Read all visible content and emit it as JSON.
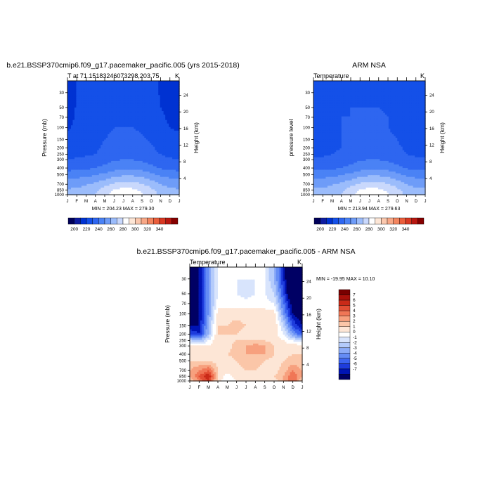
{
  "colors": {
    "temperature_scale": [
      "#00005a",
      "#0e1ca0",
      "#0032d2",
      "#1450e8",
      "#2e66f0",
      "#4a82f5",
      "#6e9cf8",
      "#9bbcfb",
      "#c9d8fc",
      "#ffffff",
      "#fde6d6",
      "#fbc8ae",
      "#f8a887",
      "#f3855f",
      "#ea5e3c",
      "#d83822",
      "#b81710",
      "#860000"
    ],
    "difference_scale": [
      "#000064",
      "#0014b4",
      "#1e3cdc",
      "#3c64f0",
      "#648cf5",
      "#8cacf8",
      "#b4cbfb",
      "#d8e4fc",
      "#ffffff",
      "#fde6d6",
      "#fbc6a8",
      "#f7a07e",
      "#f07656",
      "#e24e34",
      "#ca2a18",
      "#a8100a",
      "#780000"
    ]
  },
  "panels": {
    "model": {
      "figure_title": "b.e21.BSSP370cmip6.f09_g17.pacemaker_pacific.005 (yrs 2015-2018)",
      "left_label": "T at 71.15183246073298,203.75",
      "right_label": "K",
      "ylabel": "Pressure (mb)",
      "ylabel_right": "Height (km)",
      "minmax": "MIN = 204.23 MAX = 279.30"
    },
    "obs": {
      "figure_title": "ARM NSA",
      "left_label": "Temperature",
      "right_label": "K",
      "ylabel": "pressure level",
      "ylabel_right": "Height (km)",
      "minmax": "MIN = 213.94 MAX = 279.63"
    },
    "diff": {
      "figure_title": "b.e21.BSSP370cmip6.f09_g17.pacemaker_pacific.005 - ARM NSA",
      "left_label": "Temperature",
      "right_label": "K",
      "ylabel": "Pressure (mb)",
      "ylabel_right": "Height (km)",
      "minmax": "MIN = -19.95 MAX =  10.10"
    }
  },
  "chart_data": [
    {
      "type": "heatmap",
      "name": "model",
      "x": [
        "J",
        "F",
        "M",
        "A",
        "M",
        "J",
        "J",
        "A",
        "S",
        "O",
        "N",
        "D",
        "J"
      ],
      "pressure_ticks": [
        30,
        50,
        70,
        100,
        150,
        200,
        250,
        300,
        400,
        500,
        700,
        850,
        1000
      ],
      "height_ticks": [
        4,
        8,
        12,
        16,
        20,
        24
      ],
      "levels_mb": [
        30,
        50,
        70,
        100,
        150,
        200,
        250,
        300,
        400,
        500,
        700,
        850,
        1000
      ],
      "values": [
        [
          203,
          210,
          214,
          216,
          217,
          216,
          216,
          217,
          216,
          214,
          209,
          204,
          203
        ],
        [
          205,
          211,
          214,
          217,
          218,
          218,
          218,
          218,
          217,
          215,
          210,
          206,
          205
        ],
        [
          207,
          211,
          214,
          217,
          219,
          219,
          219,
          219,
          218,
          216,
          212,
          208,
          207
        ],
        [
          209,
          212,
          214,
          217,
          219,
          220,
          220,
          220,
          219,
          217,
          214,
          210,
          209
        ],
        [
          212,
          214,
          216,
          218,
          220,
          221,
          222,
          222,
          221,
          219,
          216,
          213,
          212
        ],
        [
          215,
          216,
          217,
          219,
          221,
          223,
          224,
          224,
          222,
          221,
          218,
          216,
          215
        ],
        [
          217,
          218,
          219,
          220,
          222,
          225,
          226,
          226,
          224,
          222,
          220,
          218,
          217
        ],
        [
          220,
          221,
          222,
          224,
          226,
          229,
          230,
          230,
          228,
          226,
          223,
          221,
          220
        ],
        [
          226,
          227,
          228,
          230,
          233,
          236,
          238,
          238,
          236,
          233,
          229,
          227,
          226
        ],
        [
          235,
          236,
          237,
          239,
          242,
          246,
          248,
          248,
          246,
          242,
          238,
          236,
          235
        ],
        [
          246,
          247,
          249,
          252,
          257,
          262,
          265,
          264,
          261,
          256,
          250,
          247,
          246
        ],
        [
          251,
          252,
          254,
          258,
          264,
          270,
          273,
          272,
          268,
          262,
          256,
          252,
          251
        ],
        [
          253,
          254,
          256,
          260,
          267,
          274,
          278,
          276,
          271,
          264,
          258,
          254,
          253
        ]
      ],
      "contour_levels": [
        195,
        200,
        210,
        220,
        230,
        240,
        250,
        260,
        270,
        280,
        290,
        300,
        310,
        320,
        330,
        340,
        350
      ],
      "colorbar_labels": [
        200,
        220,
        240,
        260,
        280,
        300,
        320,
        340
      ]
    },
    {
      "type": "heatmap",
      "name": "obs",
      "x": [
        "J",
        "F",
        "M",
        "A",
        "M",
        "J",
        "J",
        "A",
        "S",
        "O",
        "N",
        "D",
        "J"
      ],
      "pressure_ticks": [
        30,
        50,
        70,
        100,
        150,
        200,
        250,
        300,
        400,
        500,
        700,
        850,
        1000
      ],
      "height_ticks": [
        4,
        8,
        12,
        16,
        20,
        24
      ],
      "levels_mb": [
        30,
        50,
        70,
        100,
        150,
        200,
        250,
        300,
        400,
        500,
        700,
        850,
        1000
      ],
      "values": [
        [
          216,
          217,
          218,
          219,
          219,
          219,
          219,
          219,
          218,
          218,
          217,
          216,
          216
        ],
        [
          217,
          218,
          218,
          219,
          220,
          220,
          220,
          220,
          219,
          219,
          218,
          217,
          217
        ],
        [
          217,
          218,
          219,
          220,
          220,
          221,
          221,
          221,
          220,
          219,
          218,
          217,
          217
        ],
        [
          218,
          218,
          219,
          220,
          221,
          221,
          221,
          221,
          220,
          219,
          218,
          218,
          218
        ],
        [
          218,
          218,
          219,
          220,
          221,
          222,
          222,
          222,
          221,
          220,
          218,
          218,
          218
        ],
        [
          218,
          218,
          219,
          220,
          222,
          223,
          224,
          224,
          222,
          221,
          219,
          218,
          218
        ],
        [
          219,
          219,
          220,
          221,
          223,
          225,
          226,
          226,
          224,
          222,
          220,
          219,
          219
        ],
        [
          221,
          221,
          222,
          224,
          226,
          229,
          230,
          230,
          228,
          226,
          223,
          221,
          221
        ],
        [
          227,
          227,
          228,
          230,
          233,
          236,
          238,
          238,
          236,
          233,
          229,
          227,
          227
        ],
        [
          236,
          236,
          237,
          239,
          242,
          246,
          248,
          248,
          246,
          242,
          238,
          236,
          236
        ],
        [
          247,
          247,
          249,
          252,
          257,
          262,
          265,
          264,
          261,
          256,
          250,
          247,
          247
        ],
        [
          252,
          252,
          254,
          258,
          264,
          270,
          273,
          272,
          268,
          262,
          256,
          252,
          252
        ],
        [
          253,
          253,
          256,
          260,
          267,
          274,
          279,
          277,
          271,
          264,
          258,
          254,
          253
        ]
      ],
      "contour_levels": [
        195,
        200,
        210,
        220,
        230,
        240,
        250,
        260,
        270,
        280,
        290,
        300,
        310,
        320,
        330,
        340,
        350
      ],
      "colorbar_labels": [
        200,
        220,
        240,
        260,
        280,
        300,
        320,
        340
      ]
    },
    {
      "type": "heatmap",
      "name": "difference",
      "x": [
        "J",
        "F",
        "M",
        "A",
        "M",
        "J",
        "J",
        "A",
        "S",
        "O",
        "N",
        "D",
        "J"
      ],
      "pressure_ticks": [
        30,
        50,
        70,
        100,
        150,
        200,
        250,
        300,
        400,
        500,
        700,
        850,
        1000
      ],
      "height_ticks": [
        4,
        8,
        12,
        16,
        20,
        24
      ],
      "levels_mb": [
        30,
        50,
        70,
        100,
        150,
        200,
        250,
        300,
        400,
        500,
        700,
        850,
        1000
      ],
      "values": [
        [
          -13,
          -8,
          -4,
          -1,
          -0.5,
          -1,
          -1,
          -1,
          -1,
          -3,
          -7,
          -12,
          -13
        ],
        [
          -12,
          -8,
          -4,
          -1,
          -1,
          -1,
          -1.5,
          -1,
          -1,
          -2,
          -6,
          -11,
          -12
        ],
        [
          -10,
          -8,
          -4,
          -0.5,
          -0.5,
          -0.5,
          -0.5,
          -0.5,
          -0.5,
          -1,
          -5,
          -9,
          -10
        ],
        [
          -9,
          -8,
          -4,
          0.5,
          0.5,
          0.5,
          0.5,
          0.5,
          0.5,
          0.5,
          -4,
          -8,
          -9
        ],
        [
          -8,
          -8,
          -3,
          1,
          1,
          1.5,
          1,
          1,
          1,
          1,
          -2,
          -6,
          -8
        ],
        [
          -6,
          -7,
          -3,
          1,
          1,
          1,
          0.5,
          1,
          0.5,
          0.5,
          -1,
          -4,
          -6
        ],
        [
          -2,
          -3,
          -1,
          1,
          0.5,
          1,
          1,
          1,
          1,
          0.5,
          0,
          -1,
          -2
        ],
        [
          0.5,
          0,
          0,
          0.5,
          0.5,
          1.5,
          2,
          2.5,
          2,
          1,
          0.5,
          0.5,
          0.5
        ],
        [
          1,
          0.5,
          0.5,
          0.5,
          1,
          1.5,
          2,
          2,
          2,
          1,
          0.5,
          1,
          1
        ],
        [
          1,
          1,
          1,
          0.5,
          0.5,
          1,
          1.5,
          1.5,
          1,
          0.5,
          1,
          1.5,
          1
        ],
        [
          2,
          3,
          4,
          1,
          0.5,
          0.5,
          1,
          1,
          0.5,
          0.5,
          1.5,
          3,
          2
        ],
        [
          2,
          4,
          6,
          1,
          -0.5,
          0.5,
          0.5,
          0.5,
          0.5,
          1,
          2,
          4,
          2
        ],
        [
          1,
          3,
          5,
          0.5,
          -1,
          0,
          0.5,
          0.5,
          0,
          0.5,
          2,
          4,
          1
        ]
      ],
      "contour_levels": [
        -8,
        -7,
        -6,
        -5,
        -4,
        -3,
        -2,
        -1,
        0,
        1,
        2,
        3,
        4,
        5,
        6,
        7,
        8
      ],
      "colorbar_labels": [
        7,
        6,
        5,
        4,
        3,
        2,
        1,
        0,
        -1,
        -2,
        -3,
        -4,
        -5,
        -6,
        -7
      ]
    }
  ]
}
